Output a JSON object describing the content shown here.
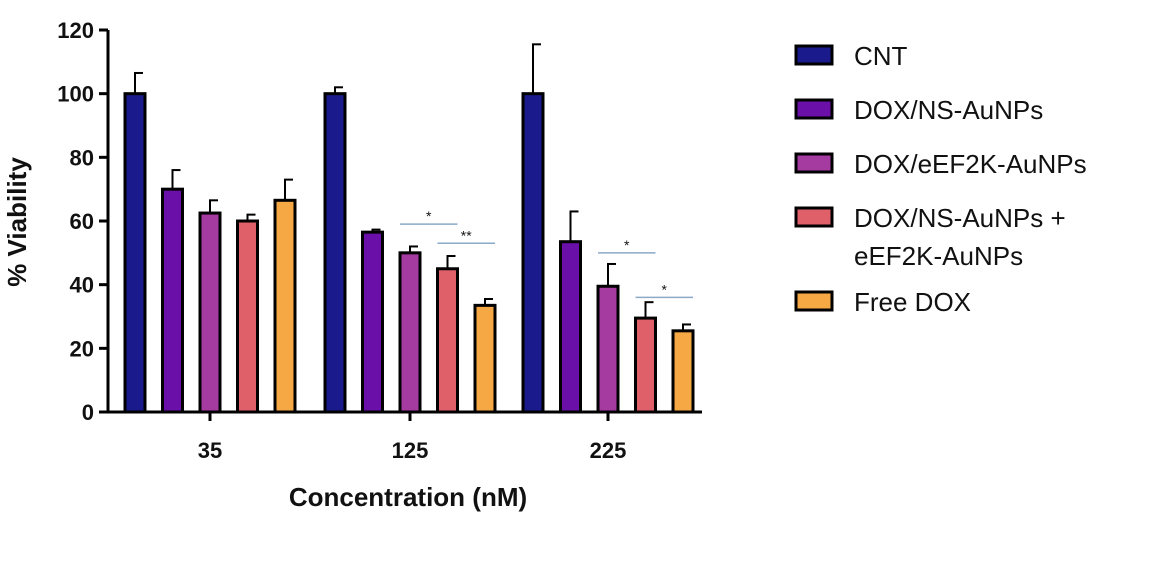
{
  "chart_data": {
    "type": "bar",
    "title": "",
    "xlabel": "Concentration (nM)",
    "ylabel": "% Viability",
    "ylim": [
      0,
      120
    ],
    "yticks": [
      0,
      20,
      40,
      60,
      80,
      100,
      120
    ],
    "categories": [
      "35",
      "125",
      "225"
    ],
    "grid": false,
    "legend_position": "right",
    "series": [
      {
        "name": "CNT",
        "color": "#1a1a8c",
        "values": [
          100,
          100,
          100
        ],
        "errors": [
          6.5,
          2,
          15.5
        ]
      },
      {
        "name": "DOX/NS-AuNPs",
        "color": "#6a0fa8",
        "values": [
          70,
          56.5,
          53.5
        ],
        "errors": [
          6,
          0.8,
          9.5
        ]
      },
      {
        "name": "DOX/eEF2K-AuNPs",
        "color": "#a53aa0",
        "values": [
          62.5,
          50,
          39.5
        ],
        "errors": [
          4,
          2,
          7
        ]
      },
      {
        "name": "DOX/NS-AuNPs + eEF2K-AuNPs",
        "legend_lines": [
          "DOX/NS-AuNPs +",
          "eEF2K-AuNPs"
        ],
        "color": "#e0606a",
        "values": [
          60,
          45,
          29.5
        ],
        "errors": [
          2,
          4,
          5
        ]
      },
      {
        "name": "Free DOX",
        "color": "#f5a844",
        "values": [
          66.5,
          33.5,
          25.5
        ],
        "errors": [
          6.5,
          2,
          2
        ]
      }
    ],
    "significance": [
      {
        "category": "125",
        "from_series": 2,
        "to_series": 3,
        "label": "*",
        "y": 59
      },
      {
        "category": "125",
        "from_series": 3,
        "to_series": 4,
        "label": "**",
        "y": 53
      },
      {
        "category": "225",
        "from_series": 2,
        "to_series": 3,
        "label": "*",
        "y": 50
      },
      {
        "category": "225",
        "from_series": 3,
        "to_series": 4,
        "label": "*",
        "y": 36
      }
    ],
    "colors": {
      "bar_outline": "#000000",
      "significance_line": "#8aaac8"
    }
  }
}
